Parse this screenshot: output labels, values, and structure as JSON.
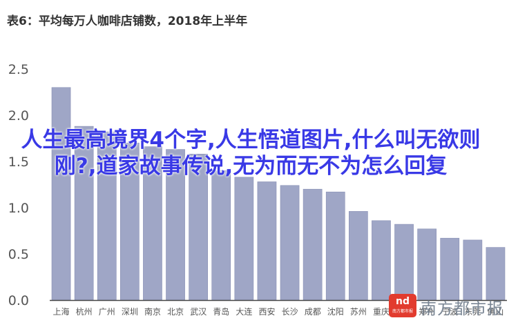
{
  "chart_data": {
    "type": "bar",
    "title": "表6：平均每万人咖啡店铺数，2018年上半年",
    "xlabel": "",
    "ylabel": "",
    "ylim": [
      0,
      2.5
    ],
    "yticks": [
      "0.0",
      "0.5",
      "1.0",
      "1.5",
      "2.0",
      "2.5"
    ],
    "grid": false,
    "categories": [
      "上海",
      "杭州",
      "广州",
      "深圳",
      "南京",
      "北京",
      "武汉",
      "青岛",
      "大连",
      "西安",
      "长沙",
      "成都",
      "沈阳",
      "苏州",
      "重庆",
      "天津",
      "郑州",
      "宁波",
      "东莞",
      "佛山"
    ],
    "values": [
      2.3,
      1.88,
      1.82,
      1.7,
      1.66,
      1.63,
      1.58,
      1.4,
      1.33,
      1.28,
      1.24,
      1.2,
      1.17,
      0.96,
      0.86,
      0.82,
      0.77,
      0.67,
      0.65,
      0.57
    ],
    "colors": {
      "bar": "#9fa6c6",
      "bar_stroke": "#8990b4",
      "axis": "#444444",
      "tick_text": "#555555"
    }
  },
  "overlay": {
    "caption": "人生最高境界4个字,人生悟道图片,什么叫无欲则刚?,道家故事传说,无为而无不为怎么回复"
  },
  "watermark": {
    "badge": "nd",
    "badge_sub": "南方都市报",
    "text": "南方都市报"
  }
}
